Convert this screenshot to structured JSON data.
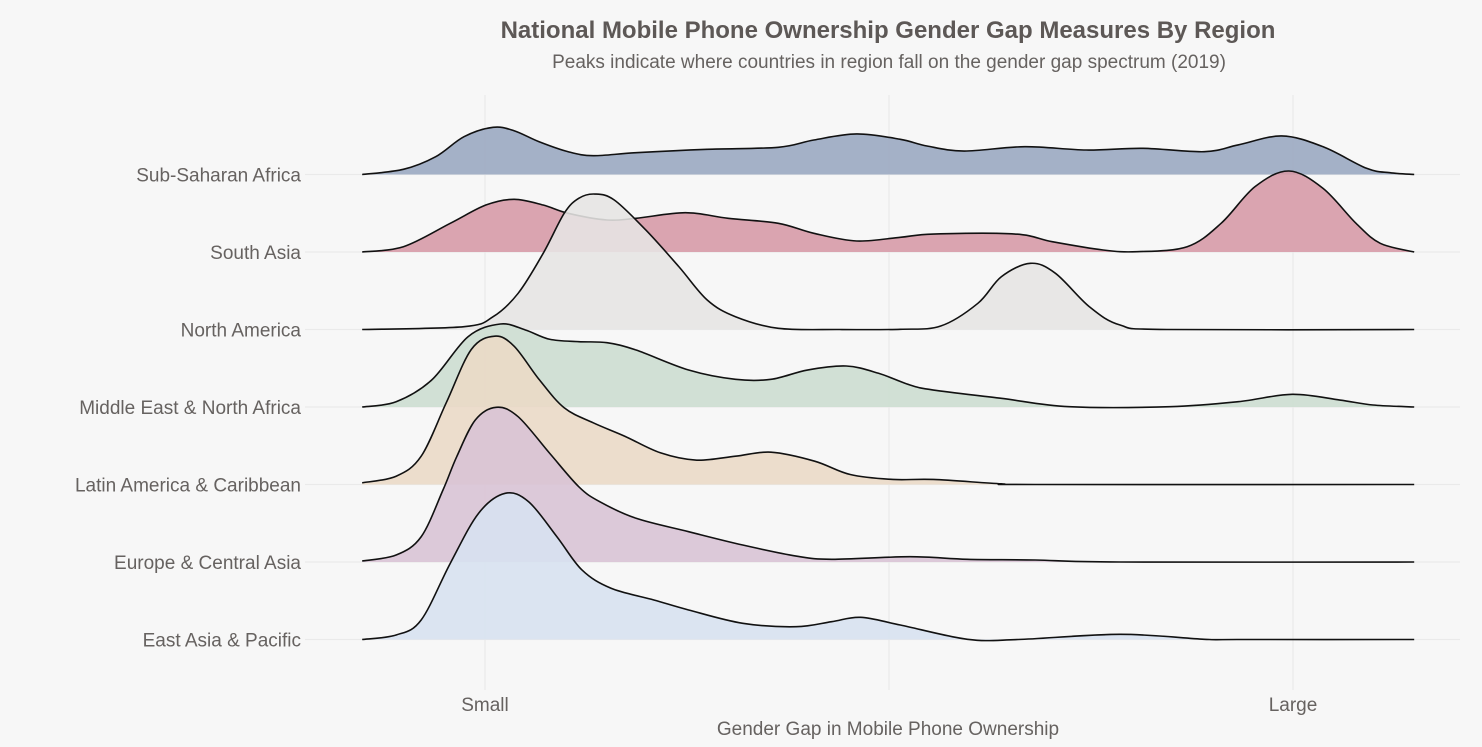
{
  "chart_data": {
    "type": "area",
    "subtype": "ridgeline-density",
    "title": "National Mobile Phone Ownership Gender Gap Measures By Region",
    "subtitle": "Peaks indicate where countries in region fall on the gender gap spectrum (2019)",
    "xlabel": "Gender Gap in Mobile Phone Ownership",
    "ylabel": "",
    "x_ticks": [
      {
        "value": 0,
        "label": "Small"
      },
      {
        "value": 1,
        "label": "Large"
      }
    ],
    "x_grid_values": [
      0,
      0.5,
      1
    ],
    "xlim": [
      -0.152,
      1.15
    ],
    "grid": true,
    "legend": "none",
    "density_units": "relative height (1 = one row spacing)",
    "series": [
      {
        "name": "Sub-Saharan Africa",
        "color": "#98A7C0",
        "points": [
          [
            -0.152,
            0
          ],
          [
            -0.101,
            0.067
          ],
          [
            -0.061,
            0.23
          ],
          [
            -0.026,
            0.488
          ],
          [
            0.01,
            0.609
          ],
          [
            0.036,
            0.565
          ],
          [
            0.067,
            0.423
          ],
          [
            0.103,
            0.294
          ],
          [
            0.134,
            0.243
          ],
          [
            0.187,
            0.281
          ],
          [
            0.275,
            0.325
          ],
          [
            0.363,
            0.351
          ],
          [
            0.407,
            0.445
          ],
          [
            0.46,
            0.523
          ],
          [
            0.514,
            0.454
          ],
          [
            0.547,
            0.368
          ],
          [
            0.593,
            0.303
          ],
          [
            0.668,
            0.359
          ],
          [
            0.744,
            0.316
          ],
          [
            0.814,
            0.338
          ],
          [
            0.89,
            0.294
          ],
          [
            0.932,
            0.381
          ],
          [
            0.986,
            0.497
          ],
          [
            1.037,
            0.359
          ],
          [
            1.091,
            0.08
          ],
          [
            1.12,
            0.023
          ],
          [
            1.15,
            0
          ]
        ]
      },
      {
        "name": "South Asia",
        "color": "#D699A6",
        "points": [
          [
            -0.152,
            0
          ],
          [
            -0.101,
            0.068
          ],
          [
            -0.043,
            0.37
          ],
          [
            0.001,
            0.606
          ],
          [
            0.036,
            0.68
          ],
          [
            0.072,
            0.606
          ],
          [
            0.103,
            0.499
          ],
          [
            0.151,
            0.413
          ],
          [
            0.187,
            0.435
          ],
          [
            0.248,
            0.507
          ],
          [
            0.301,
            0.435
          ],
          [
            0.363,
            0.37
          ],
          [
            0.407,
            0.241
          ],
          [
            0.46,
            0.142
          ],
          [
            0.514,
            0.19
          ],
          [
            0.555,
            0.232
          ],
          [
            0.656,
            0.232
          ],
          [
            0.702,
            0.133
          ],
          [
            0.765,
            0.026
          ],
          [
            0.807,
            0.004
          ],
          [
            0.869,
            0.068
          ],
          [
            0.911,
            0.37
          ],
          [
            0.953,
            0.843
          ],
          [
            0.995,
            1.045
          ],
          [
            1.037,
            0.822
          ],
          [
            1.078,
            0.37
          ],
          [
            1.108,
            0.112
          ],
          [
            1.15,
            0
          ]
        ]
      },
      {
        "name": "North America",
        "color": "#E6E5E4",
        "points": [
          [
            -0.152,
            0
          ],
          [
            -0.026,
            0.036
          ],
          [
            0.01,
            0.165
          ],
          [
            0.041,
            0.467
          ],
          [
            0.072,
            0.983
          ],
          [
            0.098,
            1.499
          ],
          [
            0.116,
            1.693
          ],
          [
            0.136,
            1.748
          ],
          [
            0.16,
            1.671
          ],
          [
            0.199,
            1.284
          ],
          [
            0.24,
            0.81
          ],
          [
            0.275,
            0.381
          ],
          [
            0.31,
            0.165
          ],
          [
            0.363,
            0.015
          ],
          [
            0.439,
            0
          ],
          [
            0.514,
            0.003
          ],
          [
            0.564,
            0.045
          ],
          [
            0.61,
            0.338
          ],
          [
            0.639,
            0.681
          ],
          [
            0.675,
            0.854
          ],
          [
            0.706,
            0.725
          ],
          [
            0.748,
            0.294
          ],
          [
            0.786,
            0.058
          ],
          [
            0.844,
            0
          ],
          [
            1.15,
            0
          ]
        ]
      },
      {
        "name": "Middle East & North Africa",
        "color": "#CCDDD0",
        "points": [
          [
            -0.152,
            0
          ],
          [
            -0.11,
            0.068
          ],
          [
            -0.066,
            0.348
          ],
          [
            -0.021,
            0.907
          ],
          [
            0.019,
            1.071
          ],
          [
            0.05,
            0.994
          ],
          [
            0.08,
            0.874
          ],
          [
            0.116,
            0.843
          ],
          [
            0.151,
            0.83
          ],
          [
            0.187,
            0.735
          ],
          [
            0.252,
            0.477
          ],
          [
            0.31,
            0.357
          ],
          [
            0.354,
            0.357
          ],
          [
            0.399,
            0.477
          ],
          [
            0.447,
            0.529
          ],
          [
            0.487,
            0.435
          ],
          [
            0.526,
            0.284
          ],
          [
            0.555,
            0.219
          ],
          [
            0.639,
            0.112
          ],
          [
            0.723,
            0.004
          ],
          [
            0.848,
            0.004
          ],
          [
            0.932,
            0.068
          ],
          [
            0.999,
            0.164
          ],
          [
            1.058,
            0.09
          ],
          [
            1.099,
            0.026
          ],
          [
            1.15,
            0
          ]
        ]
      },
      {
        "name": "Latin America & Caribbean",
        "color": "#EBD9C6",
        "points": [
          [
            -0.152,
            0.022
          ],
          [
            -0.11,
            0.107
          ],
          [
            -0.079,
            0.365
          ],
          [
            -0.048,
            1.054
          ],
          [
            -0.017,
            1.742
          ],
          [
            0.012,
            1.914
          ],
          [
            0.036,
            1.785
          ],
          [
            0.067,
            1.355
          ],
          [
            0.098,
            0.99
          ],
          [
            0.134,
            0.796
          ],
          [
            0.173,
            0.623
          ],
          [
            0.217,
            0.409
          ],
          [
            0.262,
            0.314
          ],
          [
            0.31,
            0.365
          ],
          [
            0.354,
            0.417
          ],
          [
            0.408,
            0.301
          ],
          [
            0.452,
            0.129
          ],
          [
            0.505,
            0.065
          ],
          [
            0.555,
            0.065
          ],
          [
            0.639,
            0.009
          ],
          [
            0.681,
            0
          ],
          [
            1.15,
            0
          ]
        ]
      },
      {
        "name": "Europe & Central Asia",
        "color": "#D8C3D5",
        "points": [
          [
            -0.152,
            0.013
          ],
          [
            -0.11,
            0.09
          ],
          [
            -0.079,
            0.326
          ],
          [
            -0.052,
            0.929
          ],
          [
            -0.035,
            1.359
          ],
          [
            -0.012,
            1.832
          ],
          [
            0.014,
            1.996
          ],
          [
            0.041,
            1.875
          ],
          [
            0.08,
            1.403
          ],
          [
            0.116,
            0.972
          ],
          [
            0.142,
            0.778
          ],
          [
            0.187,
            0.564
          ],
          [
            0.252,
            0.391
          ],
          [
            0.319,
            0.219
          ],
          [
            0.385,
            0.077
          ],
          [
            0.429,
            0.035
          ],
          [
            0.526,
            0.068
          ],
          [
            0.597,
            0.035
          ],
          [
            0.681,
            0.026
          ],
          [
            0.786,
            0
          ],
          [
            1.15,
            0
          ]
        ]
      },
      {
        "name": "East Asia & Pacific",
        "color": "#D7E1F0",
        "points": [
          [
            -0.152,
            0
          ],
          [
            -0.11,
            0.058
          ],
          [
            -0.079,
            0.252
          ],
          [
            -0.043,
            0.983
          ],
          [
            -0.008,
            1.628
          ],
          [
            0.025,
            1.886
          ],
          [
            0.054,
            1.778
          ],
          [
            0.089,
            1.326
          ],
          [
            0.12,
            0.897
          ],
          [
            0.156,
            0.661
          ],
          [
            0.209,
            0.51
          ],
          [
            0.252,
            0.381
          ],
          [
            0.319,
            0.209
          ],
          [
            0.385,
            0.165
          ],
          [
            0.429,
            0.23
          ],
          [
            0.465,
            0.286
          ],
          [
            0.514,
            0.187
          ],
          [
            0.597,
            0.003
          ],
          [
            0.66,
            0
          ],
          [
            0.786,
            0.067
          ],
          [
            0.89,
            0.003
          ],
          [
            0.934,
            0
          ],
          [
            1.15,
            0
          ]
        ]
      }
    ]
  }
}
